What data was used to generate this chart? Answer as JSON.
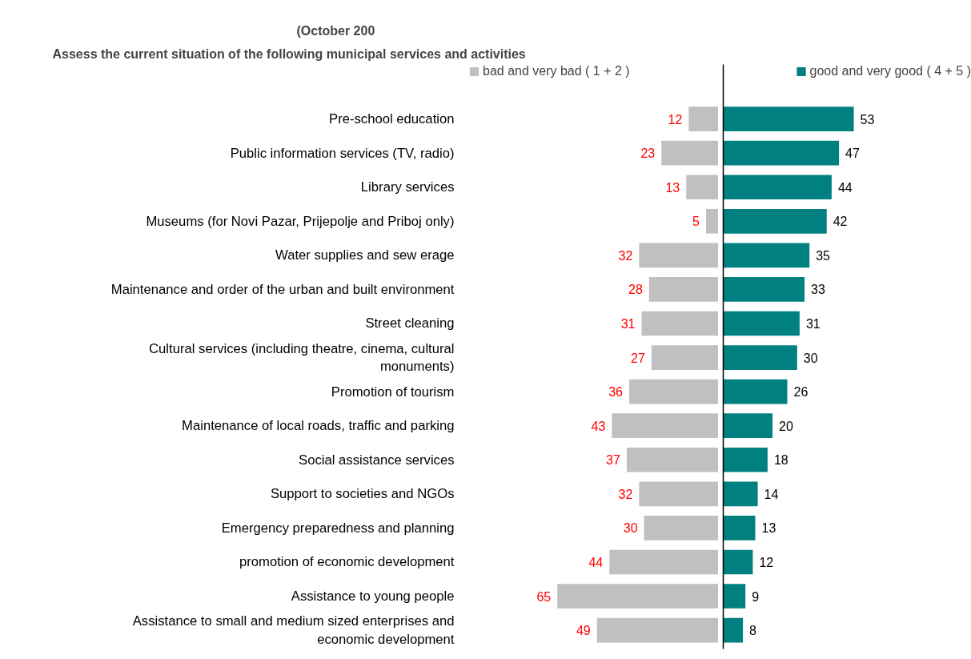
{
  "chart_data": [
    {
      "type": "bar",
      "orientation": "horizontal",
      "title": "Assess the current situation of the following municipal services and activities",
      "subtitle": "(October 200",
      "categories": [
        "Pre-school education",
        "Public information services (TV, radio)",
        "Library services",
        "Museums (for Novi Pazar, Prijepolje and Priboj only)",
        "Water supplies and sew erage",
        "Maintenance and order of the urban and built environment",
        "Street cleaning",
        "Cultural services (including theatre, cinema, cultural monuments)",
        "Promotion of tourism",
        "Maintenance of local roads, traffic and parking",
        "Social assistance services",
        "Support to societies and NGOs",
        "Emergency preparedness and planning",
        "promotion of economic development",
        "Assistance to young people",
        "Assistance to small and medium sized enterprises and economic development"
      ],
      "series": [
        {
          "name": "bad and very bad ( 1 + 2 )",
          "color": "#c0c0c0",
          "values": [
            12,
            23,
            13,
            5,
            32,
            28,
            31,
            27,
            36,
            43,
            37,
            32,
            30,
            44,
            65,
            49
          ]
        }
      ],
      "data_labels": true,
      "grid": false,
      "legend": "top left",
      "tick_labels": "y"
    },
    {
      "type": "bar",
      "orientation": "horizontal",
      "categories": [
        "Pre-school education",
        "Public information services (TV, radio)",
        "Library services",
        "Museums (for Novi Pazar, Prijepolje and Priboj only)",
        "Water supplies and sew erage",
        "Maintenance and order of the urban and built environment",
        "Street cleaning",
        "Cultural services (including theatre, cinema, cultural monuments)",
        "Promotion of tourism",
        "Maintenance of local roads, traffic and parking",
        "Social assistance services",
        "Support to societies and NGOs",
        "Emergency preparedness and planning",
        "promotion of economic development",
        "Assistance to young people",
        "Assistance to small and medium sized enterprises and economic development"
      ],
      "series": [
        {
          "name": "good and very good ( 4 + 5 )",
          "color": "#008080",
          "values": [
            53,
            47,
            44,
            42,
            35,
            33,
            31,
            30,
            26,
            20,
            18,
            14,
            13,
            12,
            9,
            8
          ]
        }
      ],
      "data_labels": true,
      "grid": false,
      "legend": "top right",
      "tick_labels": false
    }
  ]
}
